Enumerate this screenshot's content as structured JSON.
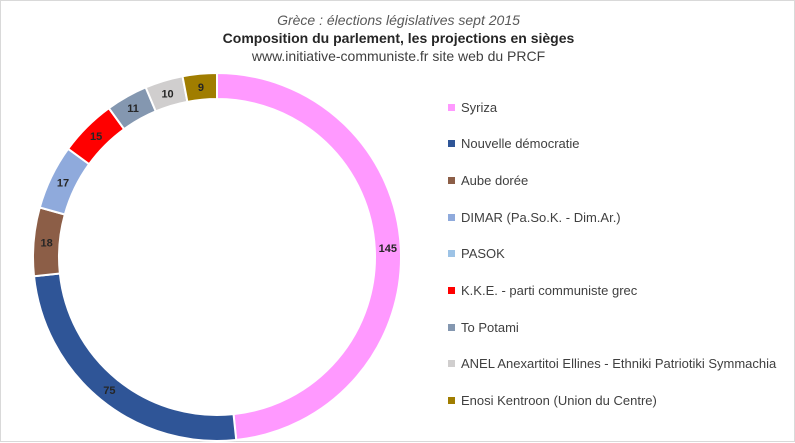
{
  "titles": {
    "line1": "Grèce : élections législatives sept 2015",
    "line2": "Composition du parlement, les projections en sièges",
    "line3": "www.initiative-communiste.fr site web du PRCF"
  },
  "chart_data": {
    "type": "pie",
    "variant": "doughnut",
    "title": "Grèce : élections législatives sept 2015",
    "subtitle": "Composition du parlement, les projections en sièges",
    "legend_position": "right",
    "slices": [
      {
        "label": "Syriza",
        "value": 145,
        "color": "#ff99ff",
        "label_color": "#262626"
      },
      {
        "label": "Nouvelle démocratie",
        "value": 75,
        "color": "#2f5597",
        "label_color": "#262626"
      },
      {
        "label": "Aube dorée",
        "value": 18,
        "color": "#8c5e47",
        "label_color": "#262626"
      },
      {
        "label": "DIMAR (Pa.So.K. - Dim.Ar.)",
        "value": 17,
        "color": "#8faadc",
        "label_color": "#262626"
      },
      {
        "label": "PASOK",
        "value": 0,
        "color": "#9dc3e6",
        "label_color": "#262626"
      },
      {
        "label": "K.K.E. - parti communiste grec",
        "value": 15,
        "color": "#ff0000",
        "label_color": "#262626"
      },
      {
        "label": "To Potami",
        "value": 11,
        "color": "#8497b0",
        "label_color": "#262626"
      },
      {
        "label": "ANEL Anexartitoi Ellines - Ethniki Patriotiki Symmachia",
        "value": 10,
        "color": "#d0cece",
        "label_color": "#262626"
      },
      {
        "label": "Enosi Kentroon (Union du Centre)",
        "value": 9,
        "color": "#a07d00",
        "label_color": "#262626"
      }
    ]
  }
}
